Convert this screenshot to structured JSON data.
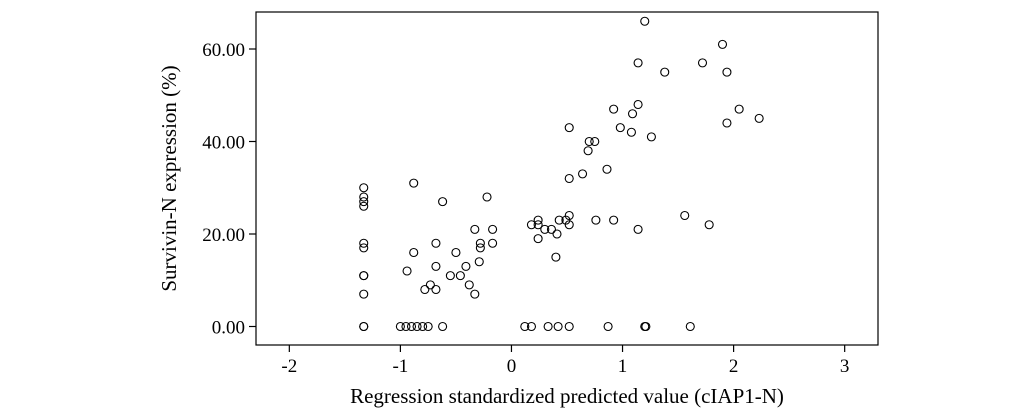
{
  "chart_data": {
    "type": "scatter",
    "xlabel": "Regression standardized predicted value (cIAP1-N)",
    "ylabel": "Survivin-N expression (%)",
    "xlim": [
      -2.3,
      3.3
    ],
    "ylim": [
      -4,
      68
    ],
    "x_ticks": [
      -2,
      -1,
      0,
      1,
      2,
      3
    ],
    "x_tick_labels": [
      "-2",
      "-1",
      "0",
      "1",
      "2",
      "3"
    ],
    "y_ticks": [
      0,
      20,
      40,
      60
    ],
    "y_tick_labels": [
      "0.00",
      "20.00",
      "40.00",
      "60.00"
    ],
    "grid": false,
    "legend": "none",
    "marker": "open-circle",
    "series": [
      {
        "points": [
          [
            -1.33,
            30
          ],
          [
            -1.33,
            28
          ],
          [
            -1.33,
            27
          ],
          [
            -1.33,
            26
          ],
          [
            -1.33,
            18
          ],
          [
            -1.33,
            17
          ],
          [
            -1.33,
            11
          ],
          [
            -1.33,
            11
          ],
          [
            -1.33,
            7
          ],
          [
            -1.33,
            0
          ],
          [
            -1.33,
            0
          ],
          [
            -1.0,
            0
          ],
          [
            -0.95,
            0
          ],
          [
            -0.9,
            0
          ],
          [
            -0.85,
            0
          ],
          [
            -0.8,
            0
          ],
          [
            -0.75,
            0
          ],
          [
            -0.62,
            0
          ],
          [
            -0.88,
            31
          ],
          [
            -0.62,
            27
          ],
          [
            -0.22,
            28
          ],
          [
            -0.68,
            18
          ],
          [
            -0.88,
            16
          ],
          [
            -0.94,
            12
          ],
          [
            -0.68,
            13
          ],
          [
            -0.78,
            8
          ],
          [
            -0.73,
            9
          ],
          [
            -0.68,
            8
          ],
          [
            -0.55,
            11
          ],
          [
            -0.5,
            16
          ],
          [
            -0.46,
            11
          ],
          [
            -0.41,
            13
          ],
          [
            -0.38,
            9
          ],
          [
            -0.33,
            7
          ],
          [
            -0.33,
            21
          ],
          [
            -0.28,
            17
          ],
          [
            -0.28,
            18
          ],
          [
            -0.29,
            14
          ],
          [
            -0.17,
            21
          ],
          [
            -0.17,
            18
          ],
          [
            0.12,
            0
          ],
          [
            0.18,
            0
          ],
          [
            0.33,
            0
          ],
          [
            0.42,
            0
          ],
          [
            0.52,
            0
          ],
          [
            0.87,
            0
          ],
          [
            1.2,
            0
          ],
          [
            1.21,
            0
          ],
          [
            1.61,
            0
          ],
          [
            0.18,
            22
          ],
          [
            0.24,
            23
          ],
          [
            0.24,
            22
          ],
          [
            0.24,
            19
          ],
          [
            0.3,
            21
          ],
          [
            0.36,
            21
          ],
          [
            0.41,
            20
          ],
          [
            0.4,
            15
          ],
          [
            0.43,
            23
          ],
          [
            0.49,
            23
          ],
          [
            0.52,
            22
          ],
          [
            0.52,
            24
          ],
          [
            0.52,
            32
          ],
          [
            0.52,
            43
          ],
          [
            0.64,
            33
          ],
          [
            0.69,
            38
          ],
          [
            0.7,
            40
          ],
          [
            0.75,
            40
          ],
          [
            0.76,
            23
          ],
          [
            0.86,
            34
          ],
          [
            0.92,
            23
          ],
          [
            0.92,
            47
          ],
          [
            0.98,
            43
          ],
          [
            1.08,
            42
          ],
          [
            1.09,
            46
          ],
          [
            1.14,
            48
          ],
          [
            1.14,
            57
          ],
          [
            1.14,
            21
          ],
          [
            1.2,
            66
          ],
          [
            1.26,
            41
          ],
          [
            1.38,
            55
          ],
          [
            1.56,
            24
          ],
          [
            1.72,
            57
          ],
          [
            1.78,
            22
          ],
          [
            1.9,
            61
          ],
          [
            1.94,
            55
          ],
          [
            1.94,
            44
          ],
          [
            2.05,
            47
          ],
          [
            2.23,
            45
          ]
        ]
      }
    ]
  }
}
